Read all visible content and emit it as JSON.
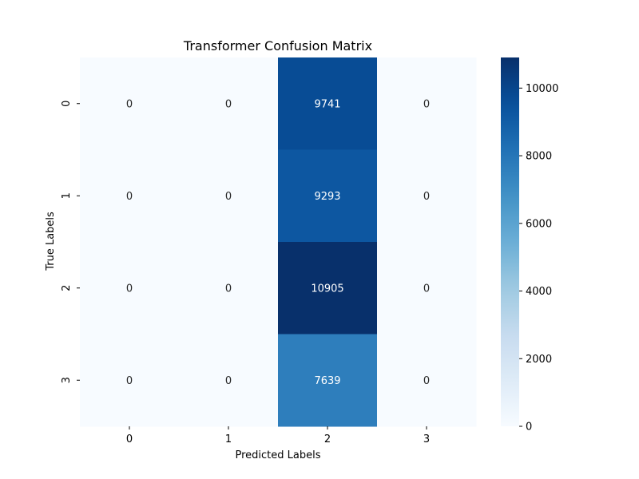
{
  "chart_data": {
    "type": "heatmap",
    "title": "Transformer Confusion Matrix",
    "xlabel": "Predicted Labels",
    "ylabel": "True Labels",
    "x_categories": [
      "0",
      "1",
      "2",
      "3"
    ],
    "y_categories": [
      "0",
      "1",
      "2",
      "3"
    ],
    "values": [
      [
        0,
        0,
        9741,
        0
      ],
      [
        0,
        0,
        9293,
        0
      ],
      [
        0,
        0,
        10905,
        0
      ],
      [
        0,
        0,
        7639,
        0
      ]
    ],
    "colormap": "Blues",
    "value_range": [
      0,
      10905
    ],
    "colorbar": {
      "ticks": [
        0,
        2000,
        4000,
        6000,
        8000,
        10000
      ],
      "tick_labels": [
        "0",
        "2000",
        "4000",
        "6000",
        "8000",
        "10000"
      ]
    },
    "colors": {
      "low": "#f7fbff",
      "high": "#08306b",
      "text_dark": "#262626",
      "text_light": "#ffffff"
    }
  }
}
